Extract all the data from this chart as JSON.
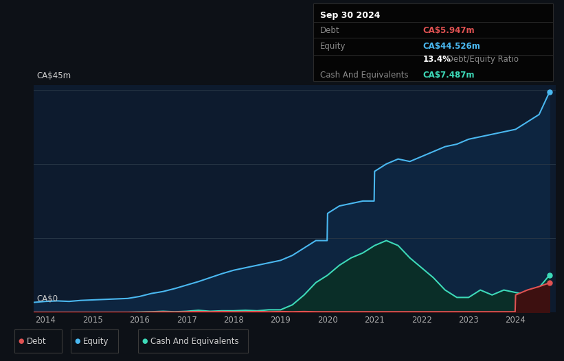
{
  "bg_color": "#0d1117",
  "plot_bg_color": "#0d1b2e",
  "grid_color": "#263545",
  "title_box": {
    "date": "Sep 30 2024",
    "debt_label": "Debt",
    "debt_value": "CA$5.947m",
    "equity_label": "Equity",
    "equity_value": "CA$44.526m",
    "ratio_bold": "13.4%",
    "ratio_text": " Debt/Equity Ratio",
    "cash_label": "Cash And Equivalents",
    "cash_value": "CA$7.487m"
  },
  "ylabel_top": "CA$45m",
  "ylabel_bottom": "CA$0",
  "x_ticks": [
    2014,
    2015,
    2016,
    2017,
    2018,
    2019,
    2020,
    2021,
    2022,
    2023,
    2024
  ],
  "colors": {
    "debt": "#e05252",
    "equity": "#4ab8f0",
    "cash": "#3dd9b8",
    "equity_fill": "#0d2540",
    "cash_fill": "#0a2e28",
    "debt_fill": "#3d1010"
  },
  "equity_data": {
    "x": [
      2013.75,
      2014.0,
      2014.25,
      2014.5,
      2014.75,
      2015.0,
      2015.25,
      2015.5,
      2015.75,
      2016.0,
      2016.25,
      2016.5,
      2016.75,
      2017.0,
      2017.25,
      2017.5,
      2017.75,
      2018.0,
      2018.25,
      2018.5,
      2018.75,
      2019.0,
      2019.25,
      2019.5,
      2019.75,
      2019.99,
      2020.0,
      2020.25,
      2020.5,
      2020.75,
      2020.99,
      2021.0,
      2021.25,
      2021.5,
      2021.75,
      2022.0,
      2022.25,
      2022.5,
      2022.75,
      2023.0,
      2023.25,
      2023.5,
      2023.75,
      2024.0,
      2024.25,
      2024.5,
      2024.72
    ],
    "y": [
      2.0,
      2.2,
      2.3,
      2.2,
      2.4,
      2.5,
      2.6,
      2.7,
      2.8,
      3.2,
      3.8,
      4.2,
      4.8,
      5.5,
      6.2,
      7.0,
      7.8,
      8.5,
      9.0,
      9.5,
      10.0,
      10.5,
      11.5,
      13.0,
      14.5,
      14.5,
      20.0,
      21.5,
      22.0,
      22.5,
      22.5,
      28.5,
      30.0,
      31.0,
      30.5,
      31.5,
      32.5,
      33.5,
      34.0,
      35.0,
      35.5,
      36.0,
      36.5,
      37.0,
      38.5,
      40.0,
      44.526
    ]
  },
  "cash_data": {
    "x": [
      2013.75,
      2014.0,
      2014.25,
      2014.5,
      2014.75,
      2015.0,
      2015.25,
      2015.5,
      2015.75,
      2016.0,
      2016.25,
      2016.5,
      2016.75,
      2017.0,
      2017.25,
      2017.5,
      2017.75,
      2018.0,
      2018.25,
      2018.5,
      2018.75,
      2019.0,
      2019.25,
      2019.5,
      2019.75,
      2020.0,
      2020.25,
      2020.5,
      2020.75,
      2021.0,
      2021.25,
      2021.5,
      2021.75,
      2022.0,
      2022.25,
      2022.5,
      2022.75,
      2023.0,
      2023.25,
      2023.5,
      2023.75,
      2024.0,
      2024.25,
      2024.5,
      2024.72
    ],
    "y": [
      0.0,
      0.0,
      0.0,
      0.0,
      0.0,
      0.0,
      0.0,
      0.0,
      0.0,
      0.05,
      0.1,
      0.2,
      0.1,
      0.2,
      0.4,
      0.2,
      0.3,
      0.3,
      0.4,
      0.3,
      0.5,
      0.5,
      1.5,
      3.5,
      6.0,
      7.5,
      9.5,
      11.0,
      12.0,
      13.5,
      14.5,
      13.5,
      11.0,
      9.0,
      7.0,
      4.5,
      3.0,
      3.0,
      4.5,
      3.5,
      4.5,
      4.0,
      3.5,
      5.0,
      7.487
    ]
  },
  "debt_data": {
    "x": [
      2013.75,
      2014.0,
      2014.25,
      2014.5,
      2014.75,
      2015.0,
      2015.25,
      2015.5,
      2015.75,
      2016.0,
      2016.25,
      2016.5,
      2016.75,
      2017.0,
      2017.25,
      2017.5,
      2017.75,
      2018.0,
      2018.25,
      2018.5,
      2018.75,
      2019.0,
      2019.25,
      2019.5,
      2019.75,
      2020.0,
      2020.25,
      2020.5,
      2020.75,
      2021.0,
      2021.25,
      2021.5,
      2021.75,
      2022.0,
      2022.25,
      2022.5,
      2022.75,
      2023.0,
      2023.25,
      2023.5,
      2023.75,
      2023.99,
      2024.0,
      2024.25,
      2024.5,
      2024.72
    ],
    "y": [
      0.0,
      0.0,
      0.0,
      0.0,
      0.0,
      0.0,
      0.0,
      0.0,
      0.0,
      0.0,
      0.05,
      0.1,
      0.05,
      0.1,
      0.15,
      0.1,
      0.15,
      0.1,
      0.1,
      0.15,
      0.1,
      0.15,
      0.1,
      0.15,
      0.1,
      0.1,
      0.1,
      0.1,
      0.1,
      0.1,
      0.1,
      0.1,
      0.1,
      0.1,
      0.1,
      0.1,
      0.1,
      0.1,
      0.1,
      0.1,
      0.1,
      0.1,
      3.5,
      4.5,
      5.2,
      5.947
    ]
  },
  "ylim": [
    0,
    46
  ],
  "xlim": [
    2013.75,
    2024.85
  ],
  "grid_yticks": [
    0,
    15,
    30,
    45
  ]
}
